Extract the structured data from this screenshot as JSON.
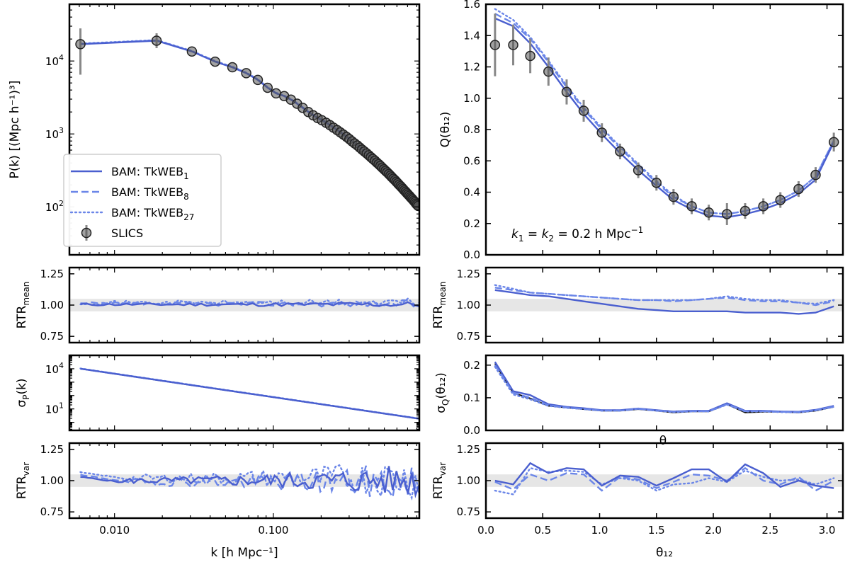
{
  "colors": {
    "bam": "#4a5fcf",
    "bam_light": "#6b86e8",
    "slics": "#555555",
    "band": "#dcdcdc"
  },
  "legend": {
    "items": [
      {
        "label": "BAM: TkWEB",
        "sub": "1",
        "style": "solid"
      },
      {
        "label": "BAM: TkWEB",
        "sub": "8",
        "style": "dashed"
      },
      {
        "label": "BAM: TkWEB",
        "sub": "27",
        "style": "dotted"
      },
      {
        "label": "SLICS",
        "sub": "",
        "style": "errorbar"
      }
    ]
  },
  "annotation": {
    "main": "k",
    "sub1": "1",
    "eq": " = ",
    "sub2": "2",
    "val": " = 0.2 h Mpc",
    "exp": "−1"
  },
  "chart_data": [
    {
      "id": "pk",
      "type": "line",
      "xscale": "log",
      "yscale": "log",
      "xlim": [
        0.0052,
        0.83
      ],
      "ylim": [
        22,
        60000
      ],
      "ylabel": "P(k) [(Mpc h⁻¹)³]",
      "yticks": [
        {
          "v": 100,
          "b": "10",
          "e": "2"
        },
        {
          "v": 1000,
          "b": "10",
          "e": "3"
        },
        {
          "v": 10000,
          "b": "10",
          "e": "4"
        }
      ],
      "slics": {
        "k": [
          0.0061,
          0.0184,
          0.0307,
          0.043,
          0.0552,
          0.0675,
          0.0798,
          0.092,
          0.104,
          0.117,
          0.129,
          0.141,
          0.153,
          0.166,
          0.178,
          0.19,
          0.202,
          0.215,
          0.227,
          0.239,
          0.252,
          0.264,
          0.276,
          0.289,
          0.301,
          0.313,
          0.325,
          0.338,
          0.35,
          0.362,
          0.374,
          0.387,
          0.399,
          0.411,
          0.423,
          0.436,
          0.448,
          0.46,
          0.472,
          0.485,
          0.497,
          0.509,
          0.521,
          0.534,
          0.546,
          0.558,
          0.57,
          0.583,
          0.595,
          0.607,
          0.619,
          0.632,
          0.644,
          0.656,
          0.668,
          0.681,
          0.693,
          0.705,
          0.718,
          0.73,
          0.742,
          0.754,
          0.767,
          0.779,
          0.791,
          0.803,
          0.816
        ],
        "pk": [
          17000,
          19000,
          13500,
          9800,
          8200,
          6800,
          5500,
          4300,
          3600,
          3300,
          2950,
          2600,
          2280,
          2000,
          1800,
          1650,
          1540,
          1420,
          1320,
          1220,
          1130,
          1050,
          980,
          910,
          850,
          790,
          740,
          695,
          650,
          610,
          575,
          540,
          510,
          480,
          455,
          430,
          405,
          385,
          365,
          345,
          328,
          312,
          297,
          282,
          268,
          255,
          243,
          232,
          221,
          211,
          201,
          192,
          184,
          176,
          168,
          161,
          154,
          148,
          142,
          136,
          131,
          126,
          121,
          116,
          111,
          107,
          103
        ],
        "err_lo": [
          6500,
          15000
        ],
        "err_hi": [
          28000,
          24000
        ]
      }
    },
    {
      "id": "q",
      "type": "line",
      "xlim": [
        0.0,
        3.14
      ],
      "ylim": [
        0.0,
        1.6
      ],
      "ylabel": "Q(θ₁₂)",
      "yticks": [
        0.0,
        0.2,
        0.4,
        0.6,
        0.8,
        1.0,
        1.2,
        1.4,
        1.6
      ],
      "series": [
        {
          "name": "BAM: TkWEB1",
          "style": "solid",
          "x": [
            0.08,
            0.24,
            0.39,
            0.55,
            0.71,
            0.86,
            1.02,
            1.18,
            1.34,
            1.5,
            1.65,
            1.81,
            1.96,
            2.12,
            2.28,
            2.44,
            2.59,
            2.75,
            2.9,
            3.06
          ],
          "y": [
            1.51,
            1.46,
            1.35,
            1.2,
            1.04,
            0.9,
            0.77,
            0.65,
            0.54,
            0.44,
            0.35,
            0.29,
            0.25,
            0.24,
            0.26,
            0.29,
            0.33,
            0.39,
            0.48,
            0.72
          ]
        },
        {
          "name": "BAM: TkWEB8",
          "style": "dashed",
          "x": [
            0.08,
            0.24,
            0.39,
            0.55,
            0.71,
            0.86,
            1.02,
            1.18,
            1.34,
            1.5,
            1.65,
            1.81,
            1.96,
            2.12,
            2.28,
            2.44,
            2.59,
            2.75,
            2.9,
            3.06
          ],
          "y": [
            1.54,
            1.48,
            1.38,
            1.23,
            1.07,
            0.93,
            0.8,
            0.68,
            0.57,
            0.46,
            0.37,
            0.31,
            0.27,
            0.26,
            0.28,
            0.31,
            0.35,
            0.41,
            0.5,
            0.73
          ]
        },
        {
          "name": "BAM: TkWEB27",
          "style": "dotted",
          "x": [
            0.08,
            0.24,
            0.39,
            0.55,
            0.71,
            0.86,
            1.02,
            1.18,
            1.34,
            1.5,
            1.65,
            1.81,
            1.96,
            2.12,
            2.28,
            2.44,
            2.59,
            2.75,
            2.9,
            3.06
          ],
          "y": [
            1.57,
            1.5,
            1.39,
            1.24,
            1.08,
            0.94,
            0.81,
            0.69,
            0.58,
            0.47,
            0.38,
            0.31,
            0.27,
            0.26,
            0.28,
            0.31,
            0.35,
            0.41,
            0.5,
            0.73
          ]
        }
      ],
      "slics": {
        "x": [
          0.08,
          0.24,
          0.39,
          0.55,
          0.71,
          0.86,
          1.02,
          1.18,
          1.34,
          1.5,
          1.65,
          1.81,
          1.96,
          2.12,
          2.28,
          2.44,
          2.59,
          2.75,
          2.9,
          3.06
        ],
        "y": [
          1.34,
          1.34,
          1.27,
          1.17,
          1.04,
          0.92,
          0.78,
          0.66,
          0.54,
          0.46,
          0.37,
          0.31,
          0.27,
          0.26,
          0.28,
          0.31,
          0.35,
          0.42,
          0.51,
          0.72
        ],
        "err": [
          0.2,
          0.13,
          0.11,
          0.09,
          0.08,
          0.07,
          0.06,
          0.05,
          0.05,
          0.05,
          0.05,
          0.05,
          0.05,
          0.07,
          0.05,
          0.05,
          0.05,
          0.05,
          0.05,
          0.06
        ]
      }
    },
    {
      "id": "rtr_mean_k",
      "type": "line",
      "xscale": "log",
      "xlim": [
        0.0052,
        0.83
      ],
      "ylim": [
        0.7,
        1.3
      ],
      "ylabel": "RTR",
      "ylabel_sub": "mean",
      "yticks": [
        0.75,
        1.0,
        1.25
      ],
      "band": [
        0.95,
        1.05
      ]
    },
    {
      "id": "rtr_mean_q",
      "type": "line",
      "xlim": [
        0.0,
        3.14
      ],
      "ylim": [
        0.7,
        1.3
      ],
      "ylabel": "RTR",
      "ylabel_sub": "mean",
      "yticks": [
        0.75,
        1.0,
        1.25
      ],
      "band": [
        0.95,
        1.05
      ],
      "series": [
        {
          "name": "BAM: TkWEB1",
          "style": "solid",
          "x": [
            0.08,
            0.24,
            0.39,
            0.55,
            0.71,
            0.86,
            1.02,
            1.18,
            1.34,
            1.5,
            1.65,
            1.81,
            1.96,
            2.12,
            2.28,
            2.44,
            2.59,
            2.75,
            2.9,
            3.06
          ],
          "y": [
            1.12,
            1.1,
            1.08,
            1.07,
            1.05,
            1.03,
            1.01,
            0.99,
            0.97,
            0.96,
            0.95,
            0.95,
            0.95,
            0.95,
            0.94,
            0.94,
            0.94,
            0.93,
            0.94,
            0.99
          ]
        },
        {
          "name": "BAM: TkWEB8",
          "style": "dashed",
          "x": [
            0.08,
            0.24,
            0.39,
            0.55,
            0.71,
            0.86,
            1.02,
            1.18,
            1.34,
            1.5,
            1.65,
            1.81,
            1.96,
            2.12,
            2.28,
            2.44,
            2.59,
            2.75,
            2.9,
            3.06
          ],
          "y": [
            1.14,
            1.12,
            1.1,
            1.09,
            1.08,
            1.07,
            1.06,
            1.05,
            1.04,
            1.04,
            1.03,
            1.04,
            1.05,
            1.06,
            1.04,
            1.03,
            1.03,
            1.02,
            1.0,
            1.03
          ]
        },
        {
          "name": "BAM: TkWEB27",
          "style": "dotted",
          "x": [
            0.08,
            0.24,
            0.39,
            0.55,
            0.71,
            0.86,
            1.02,
            1.18,
            1.34,
            1.5,
            1.65,
            1.81,
            1.96,
            2.12,
            2.28,
            2.44,
            2.59,
            2.75,
            2.9,
            3.06
          ],
          "y": [
            1.16,
            1.13,
            1.1,
            1.09,
            1.08,
            1.07,
            1.06,
            1.05,
            1.04,
            1.04,
            1.04,
            1.04,
            1.05,
            1.07,
            1.05,
            1.04,
            1.04,
            1.02,
            1.01,
            1.04
          ]
        }
      ]
    },
    {
      "id": "sigma_pk",
      "type": "line",
      "xscale": "log",
      "yscale": "log",
      "xlim": [
        0.0052,
        0.83
      ],
      "ylim": [
        0.25,
        100000
      ],
      "ylabel": "σ",
      "ylabel_sub": "P",
      "ylabel_tail": "(k)",
      "yticks": [
        {
          "v": 10,
          "b": "10",
          "e": "1"
        },
        {
          "v": 10000,
          "b": "10",
          "e": "4"
        }
      ]
    },
    {
      "id": "sigma_q",
      "type": "line",
      "xlim": [
        0.0,
        3.14
      ],
      "ylim": [
        0.0,
        0.23
      ],
      "ylabel": "σ",
      "ylabel_sub": "Q",
      "ylabel_tail": "(θ₁₂)",
      "yticks": [
        0.0,
        0.1,
        0.2
      ],
      "stray_label": "θ",
      "series": [
        {
          "name": "SLICS",
          "style": "black",
          "x": [
            0.08,
            0.24,
            0.39,
            0.55,
            0.71,
            0.86,
            1.02,
            1.18,
            1.34,
            1.5,
            1.65,
            1.81,
            1.96,
            2.12,
            2.28,
            2.44,
            2.59,
            2.75,
            2.9,
            3.06
          ],
          "y": [
            0.205,
            0.115,
            0.098,
            0.075,
            0.07,
            0.065,
            0.06,
            0.06,
            0.065,
            0.06,
            0.055,
            0.058,
            0.058,
            0.08,
            0.055,
            0.057,
            0.057,
            0.055,
            0.06,
            0.072
          ]
        },
        {
          "name": "BAM: TkWEB1",
          "style": "solid",
          "x": [
            0.08,
            0.24,
            0.39,
            0.55,
            0.71,
            0.86,
            1.02,
            1.18,
            1.34,
            1.5,
            1.65,
            1.81,
            1.96,
            2.12,
            2.28,
            2.44,
            2.59,
            2.75,
            2.9,
            3.06
          ],
          "y": [
            0.21,
            0.12,
            0.108,
            0.08,
            0.072,
            0.068,
            0.062,
            0.062,
            0.067,
            0.062,
            0.058,
            0.06,
            0.06,
            0.083,
            0.06,
            0.06,
            0.058,
            0.057,
            0.063,
            0.075
          ]
        },
        {
          "name": "BAM: TkWEB8",
          "style": "dashed",
          "x": [
            0.08,
            0.24,
            0.39,
            0.55,
            0.71,
            0.86,
            1.02,
            1.18,
            1.34,
            1.5,
            1.65,
            1.81,
            1.96,
            2.12,
            2.28,
            2.44,
            2.59,
            2.75,
            2.9,
            3.06
          ],
          "y": [
            0.2,
            0.115,
            0.1,
            0.077,
            0.07,
            0.066,
            0.061,
            0.061,
            0.066,
            0.061,
            0.057,
            0.059,
            0.059,
            0.08,
            0.059,
            0.059,
            0.057,
            0.056,
            0.062,
            0.073
          ]
        },
        {
          "name": "BAM: TkWEB27",
          "style": "dotted",
          "x": [
            0.08,
            0.24,
            0.39,
            0.55,
            0.71,
            0.86,
            1.02,
            1.18,
            1.34,
            1.5,
            1.65,
            1.81,
            1.96,
            2.12,
            2.28,
            2.44,
            2.59,
            2.75,
            2.9,
            3.06
          ],
          "y": [
            0.195,
            0.11,
            0.095,
            0.075,
            0.069,
            0.065,
            0.06,
            0.06,
            0.066,
            0.06,
            0.056,
            0.058,
            0.058,
            0.079,
            0.058,
            0.058,
            0.056,
            0.055,
            0.061,
            0.072
          ]
        }
      ]
    },
    {
      "id": "rtr_var_k",
      "type": "line",
      "xscale": "log",
      "xlim": [
        0.0052,
        0.83
      ],
      "ylim": [
        0.7,
        1.3
      ],
      "ylabel": "RTR",
      "ylabel_sub": "var",
      "yticks": [
        0.75,
        1.0,
        1.25
      ],
      "band": [
        0.95,
        1.05
      ],
      "xlabel": "k [h Mpc⁻¹]",
      "xticks": [
        {
          "v": 0.01,
          "t": "0.010"
        },
        {
          "v": 0.1,
          "t": "0.100"
        }
      ]
    },
    {
      "id": "rtr_var_q",
      "type": "line",
      "xlim": [
        0.0,
        3.14
      ],
      "ylim": [
        0.7,
        1.3
      ],
      "ylabel": "RTR",
      "ylabel_sub": "var",
      "yticks": [
        0.75,
        1.0,
        1.25
      ],
      "band": [
        0.95,
        1.05
      ],
      "xlabel": "θ₁₂",
      "xticks": [
        0.0,
        0.5,
        1.0,
        1.5,
        2.0,
        2.5,
        3.0
      ],
      "series": [
        {
          "name": "BAM: TkWEB1",
          "style": "solid",
          "x": [
            0.08,
            0.24,
            0.39,
            0.55,
            0.71,
            0.86,
            1.02,
            1.18,
            1.34,
            1.5,
            1.65,
            1.81,
            1.96,
            2.12,
            2.28,
            2.44,
            2.59,
            2.75,
            2.9,
            3.06
          ],
          "y": [
            1.0,
            0.97,
            1.14,
            1.06,
            1.1,
            1.09,
            0.96,
            1.04,
            1.03,
            0.96,
            1.02,
            1.09,
            1.09,
            0.99,
            1.13,
            1.06,
            0.95,
            1.0,
            0.96,
            0.94
          ]
        },
        {
          "name": "BAM: TkWEB8",
          "style": "dashed",
          "x": [
            0.08,
            0.24,
            0.39,
            0.55,
            0.71,
            0.86,
            1.02,
            1.18,
            1.34,
            1.5,
            1.65,
            1.81,
            1.96,
            2.12,
            2.28,
            2.44,
            2.59,
            2.75,
            2.9,
            3.06
          ],
          "y": [
            0.99,
            0.93,
            1.05,
            1.0,
            1.06,
            1.05,
            0.92,
            1.03,
            1.01,
            0.94,
            0.99,
            1.05,
            1.04,
            1.0,
            1.1,
            1.0,
            0.97,
            1.03,
            0.92,
            1.0
          ]
        },
        {
          "name": "BAM: TkWEB27",
          "style": "dotted",
          "x": [
            0.08,
            0.24,
            0.39,
            0.55,
            0.71,
            0.86,
            1.02,
            1.18,
            1.34,
            1.5,
            1.65,
            1.81,
            1.96,
            2.12,
            2.28,
            2.44,
            2.59,
            2.75,
            2.9,
            3.06
          ],
          "y": [
            0.92,
            0.89,
            1.1,
            1.07,
            1.08,
            1.07,
            0.97,
            1.02,
            1.0,
            0.92,
            0.97,
            0.98,
            1.02,
            0.99,
            1.08,
            1.03,
            1.0,
            1.01,
            0.97,
            1.02
          ]
        }
      ]
    }
  ]
}
